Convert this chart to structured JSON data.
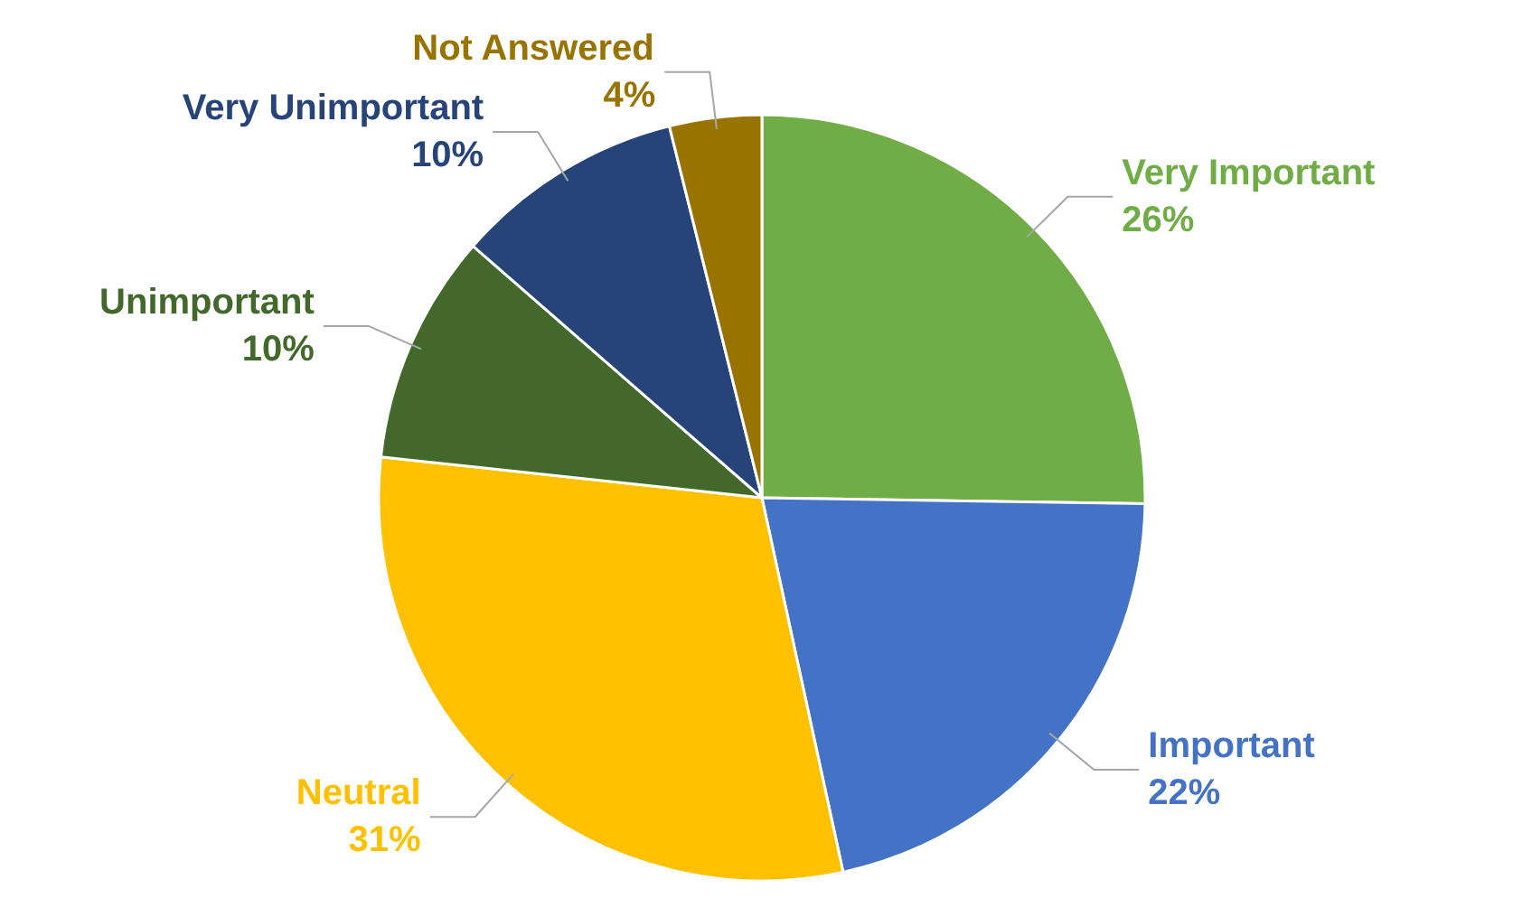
{
  "chart_data": {
    "type": "pie",
    "categories": [
      "Very Important",
      "Important",
      "Neutral",
      "Unimportant",
      "Very Unimportant",
      "Not Answered"
    ],
    "values": [
      26,
      22,
      31,
      10,
      10,
      4
    ],
    "value_labels": [
      "26%",
      "22%",
      "31%",
      "10%",
      "10%",
      "4%"
    ],
    "colors": [
      "#70ad47",
      "#4472c4",
      "#ffc000",
      "#43682b",
      "#264478",
      "#997300"
    ]
  }
}
